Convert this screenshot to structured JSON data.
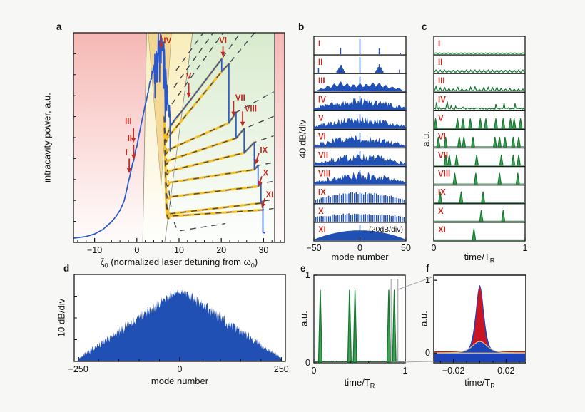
{
  "chart_data": {
    "panel_a": {
      "type": "line",
      "letter": "a",
      "ylabel": "intracavity power, a.u.",
      "xlabel": {
        "sym": "ζ",
        "symsub": "0",
        "mid": " (normalized laser detuning from ",
        "omega": "ω",
        "omegasub": "0",
        "end": ")"
      },
      "x_range": [
        -15,
        35
      ],
      "x_ticks": [
        {
          "v": -10,
          "l": "−10"
        },
        {
          "v": 0,
          "l": "0"
        },
        {
          "v": 10,
          "l": "10"
        },
        {
          "v": 20,
          "l": "20"
        },
        {
          "v": 30,
          "l": "30"
        }
      ],
      "regions": {
        "pink_left": [
          [
            -15,
            1
          ],
          [
            2.3,
            1
          ],
          [
            1.4,
            0
          ],
          [
            -15,
            0
          ]
        ],
        "yellow_mid": [
          [
            2.3,
            1
          ],
          [
            13.2,
            1
          ],
          [
            6.6,
            0
          ],
          [
            1.4,
            0
          ]
        ],
        "green_right": [
          [
            13.2,
            1
          ],
          [
            32.6,
            1
          ],
          [
            32.6,
            0
          ],
          [
            6.6,
            0
          ]
        ],
        "pink_right": [
          [
            32.6,
            1
          ],
          [
            35,
            1
          ],
          [
            35,
            0
          ],
          [
            32.6,
            0
          ]
        ],
        "tan_wedge": [
          [
            2.7,
            1
          ],
          [
            8.2,
            1
          ],
          [
            5.75,
            0.27
          ]
        ],
        "gray_vline_x": 32.6
      },
      "resonance_curve_points": [
        [
          -15,
          0.02
        ],
        [
          -12,
          0.028
        ],
        [
          -10,
          0.04
        ],
        [
          -8,
          0.062
        ],
        [
          -6,
          0.098
        ],
        [
          -5,
          0.122
        ],
        [
          -4,
          0.152
        ],
        [
          -3,
          0.198
        ],
        [
          -2.3,
          0.258
        ],
        [
          -1.9,
          0.3
        ],
        [
          -1.7,
          0.308
        ],
        [
          -1.5,
          0.33
        ],
        [
          -1.1,
          0.365
        ],
        [
          -0.95,
          0.385
        ],
        [
          -0.75,
          0.39
        ],
        [
          -0.55,
          0.41
        ],
        [
          -0.3,
          0.44
        ],
        [
          -0.15,
          0.452
        ],
        [
          0.05,
          0.458
        ],
        [
          0.3,
          0.49
        ],
        [
          0.6,
          0.52
        ],
        [
          1,
          0.56
        ]
      ],
      "noisy_rise_points": [
        [
          1,
          0.56
        ],
        [
          2,
          0.655
        ],
        [
          3,
          0.75
        ],
        [
          4,
          0.835
        ],
        [
          4.2,
          0.85
        ]
      ],
      "chaos_envelope_points": [
        [
          4.2,
          0.86
        ],
        [
          4.8,
          0.92
        ],
        [
          5.2,
          0.945
        ],
        [
          5.7,
          0.965
        ],
        [
          6.1,
          0.93
        ],
        [
          6.5,
          0.86
        ],
        [
          6.9,
          0.78
        ],
        [
          7.3,
          0.7
        ],
        [
          7.6,
          0.64
        ],
        [
          7.9,
          0.59
        ],
        [
          8,
          0.56
        ]
      ],
      "staircase_segments": [
        [
          8.0,
          0.555,
          20.1,
          0.875
        ],
        [
          20.1,
          0.815,
          21.8,
          0.852
        ],
        [
          21.8,
          0.57,
          23.5,
          0.62
        ],
        [
          23.5,
          0.497,
          25.4,
          0.542
        ],
        [
          25.4,
          0.427,
          27.8,
          0.477
        ],
        [
          27.8,
          0.347,
          28.7,
          0.367
        ],
        [
          28.7,
          0.267,
          29.4,
          0.282
        ],
        [
          29.4,
          0.187,
          29.85,
          0.197
        ]
      ],
      "final_drop": {
        "x": 29.85,
        "y_low": 0.048,
        "x_end": 30.35
      },
      "branch_fan_starts": [
        [
          6.45,
          0.6
        ],
        [
          6.5,
          0.545
        ],
        [
          6.55,
          0.49
        ],
        [
          6.62,
          0.44
        ],
        [
          6.68,
          0.39
        ],
        [
          6.74,
          0.335
        ],
        [
          6.8,
          0.285
        ],
        [
          6.86,
          0.235
        ]
      ],
      "extra_branch": {
        "fan": [
          6.92,
          0.185
        ],
        "dip": [
          7.8,
          0.125
        ],
        "end": [
          29.85,
          0.155
        ]
      },
      "upper_dashed_starts": [
        [
          8.3,
          0.66
        ],
        [
          8.8,
          0.74
        ],
        [
          9.3,
          0.82
        ]
      ],
      "deep_dashed_arc": {
        "start": [
          6.9,
          0.45
        ],
        "dip": [
          10.0,
          0.055
        ],
        "end": [
          21.0,
          0.09
        ]
      },
      "dash_clip_x": 32.4,
      "arrows": [
        {
          "label": "I",
          "tail": [
            -1.8,
            0.4
          ],
          "tip": [
            -1.8,
            0.33
          ],
          "lx": -2.2,
          "ly": 0.43,
          "anchor": "end"
        },
        {
          "label": "II",
          "tail": [
            -0.75,
            0.465
          ],
          "tip": [
            -0.75,
            0.395
          ],
          "lx": -1.15,
          "ly": 0.497,
          "anchor": "end"
        },
        {
          "label": "III",
          "tail": [
            -0.8,
            0.545
          ],
          "tip": [
            -0.8,
            0.475
          ],
          "lx": -1.2,
          "ly": 0.578,
          "anchor": "end"
        },
        {
          "label": "IV",
          "tail": [
            5.75,
            0.99
          ],
          "tip": [
            5.75,
            0.925
          ],
          "lx": 6.35,
          "ly": 0.962,
          "anchor": "start"
        },
        {
          "label": "V",
          "tail": [
            12.3,
            0.76
          ],
          "tip": [
            12.3,
            0.69
          ],
          "lx": 12.3,
          "ly": 0.795,
          "anchor": "middle"
        },
        {
          "label": "VI",
          "tail": [
            20.4,
            0.935
          ],
          "tip": [
            20.4,
            0.885
          ],
          "lx": 20.4,
          "ly": 0.965,
          "anchor": "middle"
        },
        {
          "label": "VII",
          "tail": [
            22.9,
            0.675
          ],
          "tip": [
            22.9,
            0.6
          ],
          "lx": 23.3,
          "ly": 0.69,
          "anchor": "start"
        },
        {
          "label": "VIII",
          "tail": [
            25.05,
            0.625
          ],
          "tip": [
            25.05,
            0.552
          ],
          "lx": 25.5,
          "ly": 0.638,
          "anchor": "start"
        },
        {
          "label": "IX",
          "tail": [
            28.9,
            0.425
          ],
          "tip": [
            28.05,
            0.372
          ],
          "lx": 29.15,
          "ly": 0.44,
          "anchor": "start"
        },
        {
          "label": "X",
          "tail": [
            29.6,
            0.315
          ],
          "tip": [
            28.85,
            0.268
          ],
          "lx": 29.85,
          "ly": 0.332,
          "anchor": "start"
        },
        {
          "label": "XI",
          "tail": [
            30.3,
            0.21
          ],
          "tip": [
            29.6,
            0.163
          ],
          "lx": 30.55,
          "ly": 0.228,
          "anchor": "start"
        }
      ],
      "seed": 11
    },
    "panel_b": {
      "type": "bar",
      "letter": "b",
      "ylabel": "40 dB/div",
      "xlabel": "mode number",
      "note": "(20dB/div)",
      "x_range": [
        -50,
        50
      ],
      "x_ticks": [
        {
          "v": -50,
          "l": "−50"
        },
        {
          "v": 0,
          "l": "0"
        },
        {
          "v": 50,
          "l": "50"
        }
      ],
      "rows": [
        {
          "label": "I",
          "type": "lines",
          "lines": [
            [
              0,
              0.92
            ],
            [
              -21,
              0.38
            ],
            [
              21,
              0.36
            ],
            [
              44,
              0.07
            ]
          ]
        },
        {
          "label": "II",
          "type": "clusters",
          "center": 0.95,
          "clusters": [
            [
              -21,
              0.5
            ],
            [
              21,
              0.52
            ]
          ],
          "edge_lines": [
            [
              -45,
              0.27
            ],
            [
              43,
              0.2
            ]
          ]
        },
        {
          "label": "III",
          "type": "bumps",
          "spike": 0.9,
          "bumps": [
            [
              -42,
              0.15
            ],
            [
              -35,
              0.3
            ],
            [
              -28,
              0.42
            ],
            [
              -21,
              0.55
            ],
            [
              -14,
              0.45
            ],
            [
              -7,
              0.38
            ],
            [
              0,
              0.45
            ],
            [
              7,
              0.42
            ],
            [
              14,
              0.5
            ],
            [
              21,
              0.48
            ],
            [
              28,
              0.35
            ],
            [
              35,
              0.25
            ],
            [
              42,
              0.18
            ]
          ]
        },
        {
          "label": "IV",
          "type": "chaotic",
          "peak": 0.78,
          "seed": 4
        },
        {
          "label": "V",
          "type": "chaotic",
          "peak": 0.8,
          "seed": 5
        },
        {
          "label": "VI",
          "type": "chaotic",
          "peak": 0.8,
          "seed": 6
        },
        {
          "label": "VII",
          "type": "chaotic",
          "peak": 0.82,
          "seed": 7
        },
        {
          "label": "VIII",
          "type": "chaotic",
          "peak": 0.8,
          "seed": 8
        },
        {
          "label": "IX",
          "type": "comb",
          "peak": 0.65,
          "seed": 9
        },
        {
          "label": "X",
          "type": "comb",
          "peak": 0.5,
          "seed": 10
        },
        {
          "label": "XI",
          "type": "envelope",
          "peak": 0.6,
          "spike": 0.93
        }
      ]
    },
    "panel_c": {
      "type": "line",
      "letter": "c",
      "ylabel": "a.u.",
      "xlabel": {
        "pre": "time/T",
        "sub": "R"
      },
      "x_range": [
        0,
        1
      ],
      "x_ticks": [
        {
          "v": 0,
          "l": "0"
        },
        {
          "v": 1,
          "l": "1"
        }
      ],
      "rows": [
        {
          "label": "I",
          "type": "ripple",
          "amp": 0.05,
          "n": 22
        },
        {
          "label": "II",
          "type": "bumps",
          "amp": 0.14,
          "n": 21,
          "seed": 2
        },
        {
          "label": "III",
          "type": "bumps_irr",
          "n": 21,
          "seed": 3
        },
        {
          "label": "IV",
          "type": "chaotic",
          "seed": 14
        },
        {
          "label": "V",
          "type": "pulses",
          "h": 0.6,
          "pulses": [
            0.02,
            0.26,
            0.32,
            0.4,
            0.51,
            0.57,
            0.68,
            0.76,
            0.84,
            0.88,
            0.95
          ]
        },
        {
          "label": "VI",
          "type": "pulses",
          "h": 0.62,
          "pulses": [
            0.05,
            0.13,
            0.28,
            0.33,
            0.43,
            0.67,
            0.72,
            0.78,
            0.87,
            0.93
          ]
        },
        {
          "label": "VII",
          "type": "pulses",
          "h": 0.66,
          "pulses": [
            0.13,
            0.17,
            0.25,
            0.47,
            0.74,
            0.87,
            0.93
          ]
        },
        {
          "label": "VIII",
          "type": "pulses",
          "h": 0.68,
          "pulses": [
            0.23,
            0.46,
            0.72,
            0.92
          ]
        },
        {
          "label": "IX",
          "type": "pulses",
          "h": 0.68,
          "pulses": [
            0.07,
            0.3,
            0.54
          ]
        },
        {
          "label": "X",
          "type": "pulses",
          "h": 0.68,
          "pulses": [
            0.52,
            0.76
          ]
        },
        {
          "label": "XI",
          "type": "pulses",
          "h": 0.7,
          "pulses": [
            0.44
          ]
        }
      ]
    },
    "panel_d": {
      "type": "area",
      "letter": "d",
      "ylabel": "10 dB/div",
      "xlabel": "mode number",
      "x_range": [
        -260,
        260
      ],
      "x_ticks": [
        {
          "v": -250,
          "l": "−250"
        },
        {
          "v": 0,
          "l": "0"
        },
        {
          "v": 250,
          "l": "250"
        }
      ],
      "envelope": {
        "peak": 0.88,
        "edge": 0.05,
        "half_width": 250
      },
      "seed": 5
    },
    "panel_e": {
      "type": "line",
      "letter": "e",
      "ylabel": "a.u.",
      "xlabel": {
        "pre": "time/T",
        "sub": "R"
      },
      "x_range": [
        0,
        1
      ],
      "x_ticks": [
        {
          "v": 0,
          "l": "0"
        },
        {
          "v": 1,
          "l": "1"
        }
      ],
      "y_ticks": [
        {
          "v": 0,
          "l": "0"
        },
        {
          "v": 1,
          "l": "1"
        }
      ],
      "pulses": [
        0.07,
        0.39,
        0.45,
        0.82,
        0.88
      ],
      "pulse_height": 0.84,
      "zoom_box": {
        "x0": 0.845,
        "x1": 0.92,
        "y0": 0.0,
        "y1": 0.97
      }
    },
    "panel_f": {
      "type": "line",
      "letter": "f",
      "ylabel": "a.u.",
      "xlabel": {
        "pre": "time/T",
        "sub": "R"
      },
      "x_range": [
        -0.035,
        0.035
      ],
      "x_ticks": [
        {
          "v": -0.02,
          "l": "−0.02"
        },
        {
          "v": 0.02,
          "l": "0.02"
        }
      ],
      "x_minor_ticks": [
        -0.03,
        -0.01,
        0,
        0.01,
        0.03
      ],
      "y_ticks": [
        {
          "v": 0,
          "l": "0"
        },
        {
          "v": 1,
          "l": "1"
        }
      ],
      "pulses": {
        "blue_wide": {
          "peak": 0.93,
          "half_width": 0.0042
        },
        "red": {
          "peak": 0.89,
          "half_width": 0.0034,
          "base": 0.022
        },
        "blue_small": {
          "peak": 0.155,
          "half_width": 0.0075
        }
      }
    },
    "colors": {
      "blue": "#2a58cc",
      "spectrum_fill": "#2150b4",
      "yellow_branch": "#f4c02a",
      "dash_gray": "#47474d",
      "red_label": "#c22b22",
      "green_stroke": "#157a31",
      "green_fill": "#46a05a",
      "pink_top": "#f5b4b0",
      "yellow_top": "#f8ecb6",
      "tan_wedge": "#f1d28c",
      "green_top": "#d6eacb",
      "frame": "#1a1a1a",
      "f_red": "#cc1522",
      "f_blue": "#1d43bb",
      "f_tan": "#d9c18f",
      "connector": "#aaaaaa"
    }
  }
}
